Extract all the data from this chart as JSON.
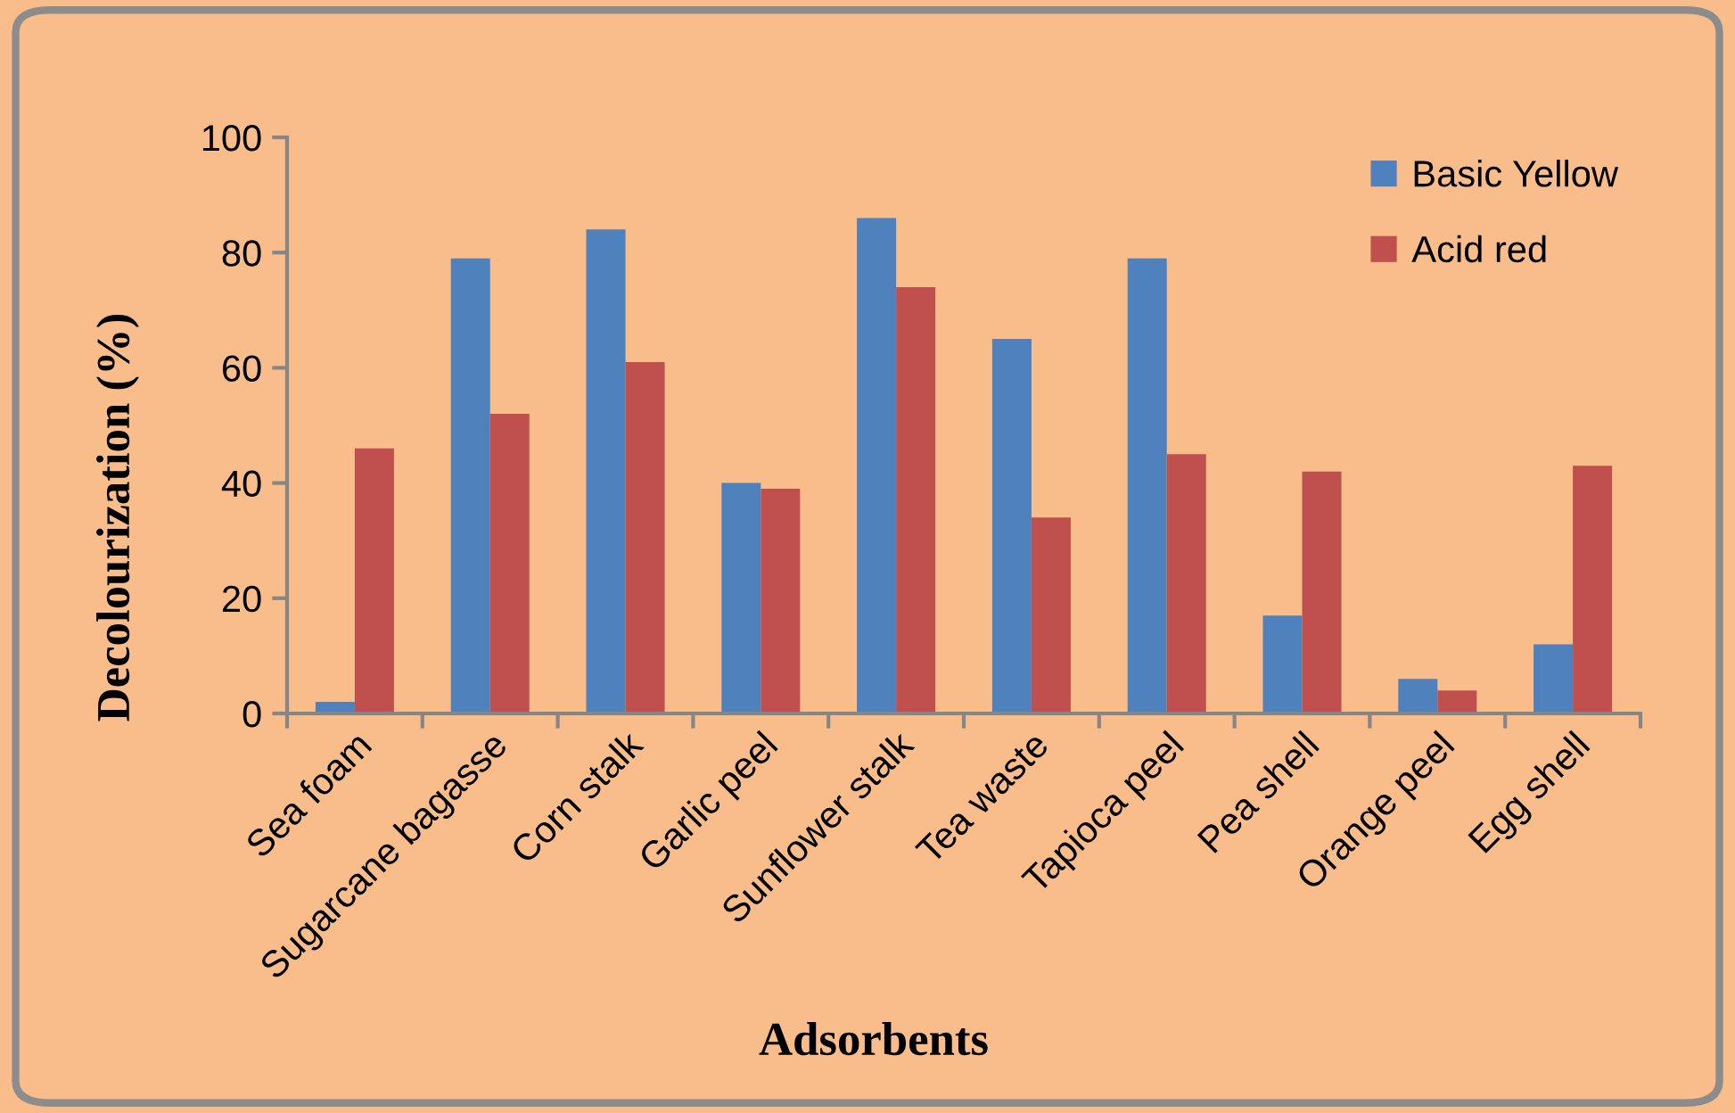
{
  "chart_data": {
    "type": "bar",
    "xlabel": "Adsorbents",
    "ylabel": "Decolourization (%)",
    "categories": [
      "Sea foam",
      "Sugarcane bagasse",
      "Corn stalk",
      "Garlic peel",
      "Sunflower stalk",
      "Tea waste",
      "Tapioca peel",
      "Pea shell",
      "Orange peel",
      "Egg shell"
    ],
    "series": [
      {
        "name": "Basic Yellow",
        "color": "#4f81bd",
        "values": [
          2,
          79,
          84,
          40,
          86,
          65,
          79,
          17,
          6,
          12
        ]
      },
      {
        "name": "Acid red",
        "color": "#c0504d",
        "values": [
          46,
          52,
          61,
          39,
          74,
          34,
          45,
          42,
          4,
          43
        ]
      }
    ],
    "ylim": [
      0,
      100
    ],
    "yticks": [
      0,
      20,
      40,
      60,
      80,
      100
    ],
    "legend": "top right",
    "grid": false
  }
}
